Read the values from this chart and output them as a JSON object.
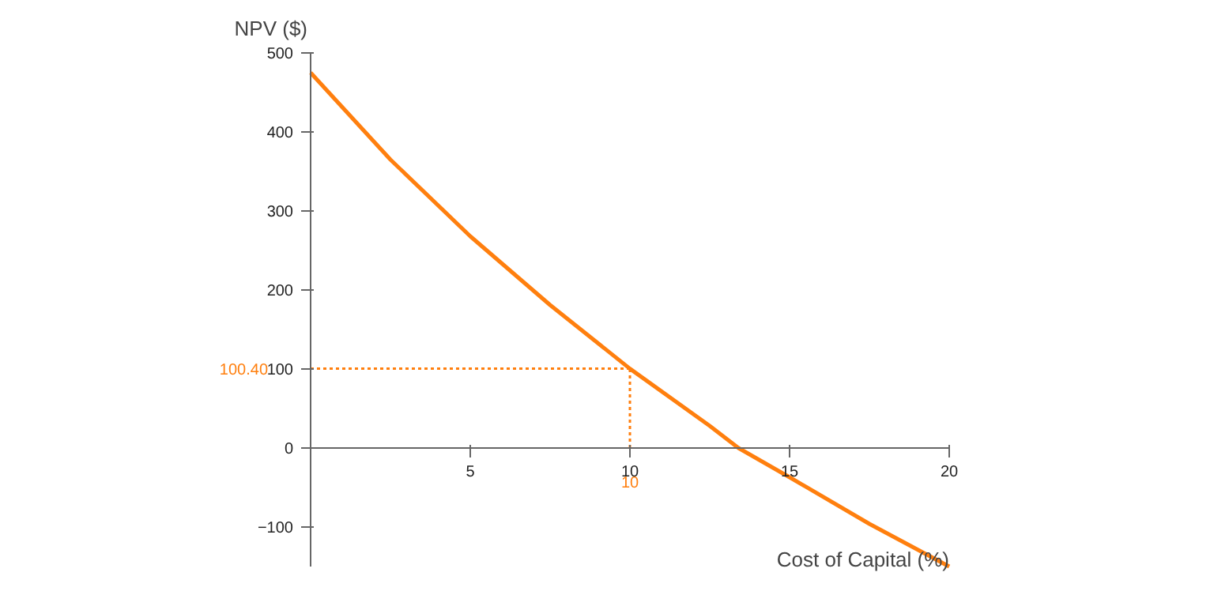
{
  "chart_data": {
    "type": "line",
    "xlabel": "Cost of Capital (%)",
    "ylabel": "NPV ($)",
    "x": [
      0,
      2.5,
      5,
      7.5,
      10,
      12.5,
      13.4,
      15,
      17.5,
      20
    ],
    "series": [
      {
        "color": "#ff7f0e",
        "values": [
          475,
          365,
          268,
          181,
          100.4,
          28,
          0,
          -37,
          -96,
          -150
        ]
      }
    ],
    "xlim": [
      0,
      20
    ],
    "ylim": [
      -150,
      500
    ],
    "xticks": [
      5,
      10,
      15,
      20
    ],
    "yticks": [
      -100,
      0,
      100,
      200,
      300,
      400,
      500
    ],
    "ref_lines": [
      {
        "axis": "y",
        "value": 100.4,
        "label": "100.40",
        "color": "#ff7f0e",
        "line_style": "dotted"
      },
      {
        "axis": "x",
        "value": 10,
        "label": "10",
        "color": "#ff7f0e",
        "line_style": "dotted"
      }
    ],
    "grid": false,
    "marker": "none",
    "line_style": "solid"
  }
}
